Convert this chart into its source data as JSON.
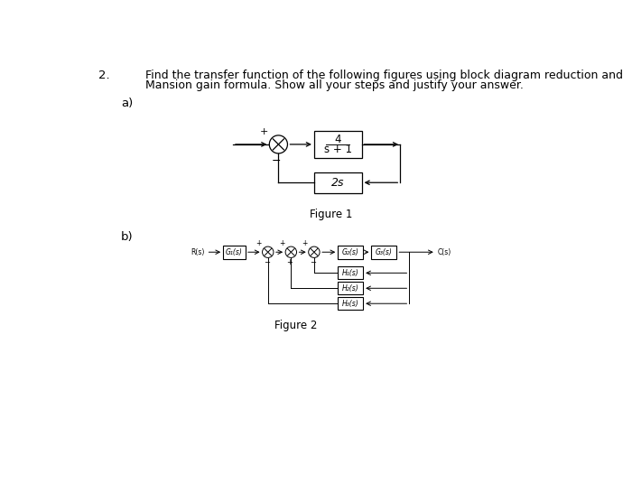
{
  "bg_color": "#ffffff",
  "text_color": "#000000",
  "question_number": "2.",
  "question_text_line1": "Find the transfer function of the following figures using block diagram reduction and",
  "question_text_line2": "Mansion gain formula. Show all your steps and justify your answer.",
  "part_a": "a)",
  "part_b": "b)",
  "fig1_label": "Figure 1",
  "fig2_label": "Figure 2",
  "fig1_forward_top": "4",
  "fig1_forward_bot": "s + 1",
  "fig1_feedback_block": "2s",
  "fig2_R_label": "R(s)",
  "fig2_C_label": "C(s)",
  "fig2_G1_label": "G₁(s)",
  "fig2_G2_label": "G₂(s)",
  "fig2_G3_label": "G₃(s)",
  "fig2_H1_label": "H₁(s)",
  "fig2_H2_label": "H₂(s)",
  "fig2_H3_label": "H₃(s)",
  "line_color": "#000000",
  "box_color": "#000000",
  "box_facecolor": "#ffffff",
  "lw": 0.9
}
